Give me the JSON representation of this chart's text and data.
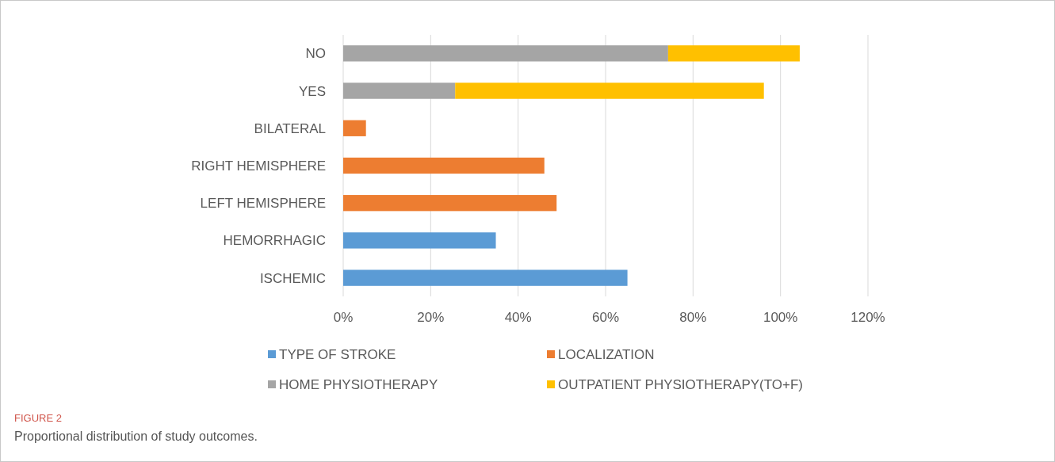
{
  "chart_data": {
    "type": "bar",
    "orientation": "horizontal",
    "stacked": true,
    "title": "FIGURE 2",
    "subtitle": "Proportional distribution of study outcomes.",
    "categories": [
      "NO",
      "YES",
      "BILATERAL",
      "RIGHT HEMISPHERE",
      "LEFT HEMISPHERE",
      "HEMORRHAGIC",
      "ISCHEMIC"
    ],
    "series": [
      {
        "name": "TYPE OF STROKE",
        "color": "#5b9bd5",
        "values": [
          null,
          null,
          null,
          null,
          null,
          34.9,
          65
        ]
      },
      {
        "name": "LOCALIZATION",
        "color": "#ed7d31",
        "values": [
          null,
          null,
          5.2,
          46,
          48.8,
          null,
          null
        ]
      },
      {
        "name": "HOME PHYSIOTHERAPY",
        "color": "#a5a5a5",
        "values": [
          74.3,
          25.6,
          null,
          null,
          null,
          null,
          null
        ]
      },
      {
        "name": "OUTPATIENT PHYSIOTHERAPY(TO+F)",
        "color": "#ffc000",
        "values": [
          30.1,
          70.6,
          null,
          null,
          null,
          null,
          null
        ]
      }
    ],
    "xlim": [
      0,
      120
    ],
    "xticks": [
      {
        "value": 0,
        "label": "0%"
      },
      {
        "value": 20,
        "label": "20%"
      },
      {
        "value": 40,
        "label": "40%"
      },
      {
        "value": 60,
        "label": "60%"
      },
      {
        "value": 80,
        "label": "80%"
      },
      {
        "value": 100,
        "label": "100%"
      },
      {
        "value": 120,
        "label": "120%"
      }
    ],
    "grid": "x",
    "legend": "bottom"
  }
}
